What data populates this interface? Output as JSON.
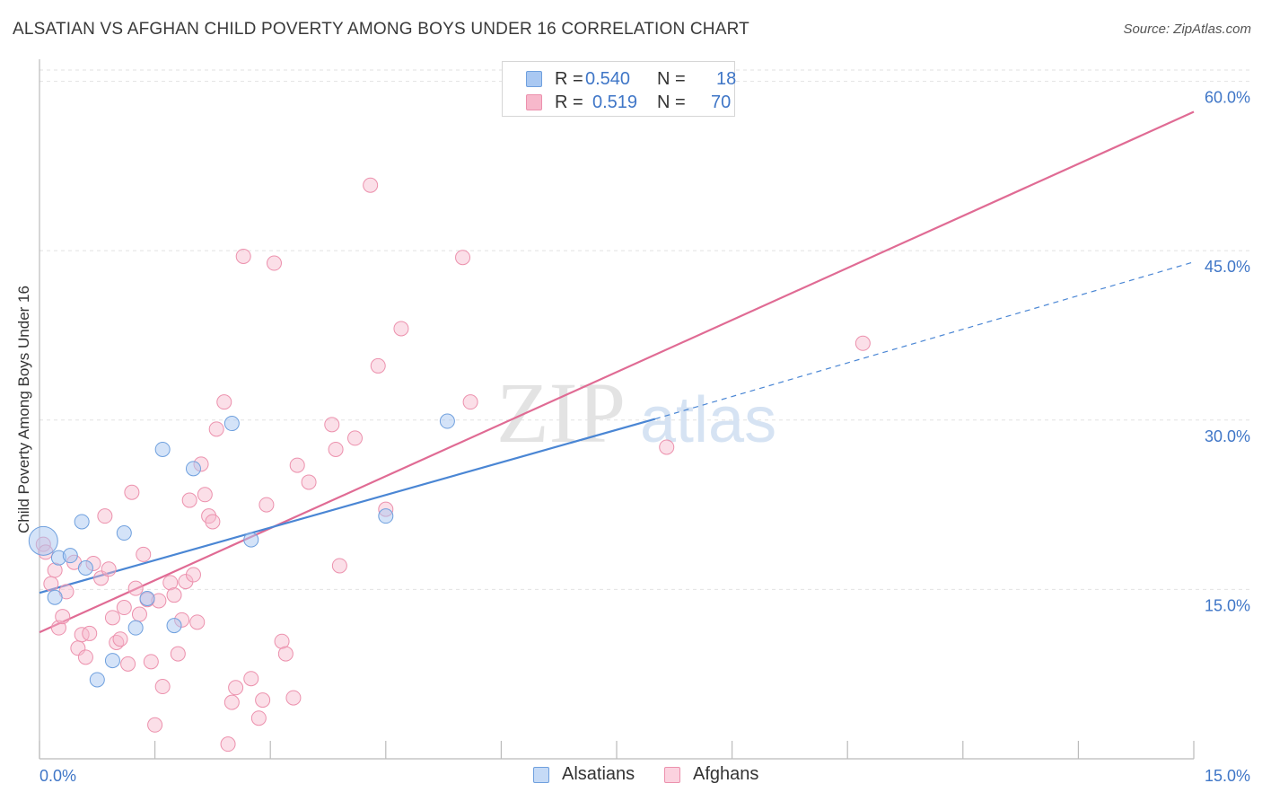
{
  "header": {
    "title": "ALSATIAN VS AFGHAN CHILD POVERTY AMONG BOYS UNDER 16 CORRELATION CHART",
    "source": "Source: ZipAtlas.com"
  },
  "watermark": {
    "zip": "ZIP",
    "atlas": "atlas"
  },
  "legend": {
    "rows": [
      {
        "r_label": "R =",
        "r_value": "0.540",
        "n_label": "N =",
        "n_value": "18",
        "color": "#a9c8f2"
      },
      {
        "r_label": "R =",
        "r_value": "0.519",
        "n_label": "N =",
        "n_value": "70",
        "color": "#f7b8cb"
      }
    ]
  },
  "bottom_legend": {
    "items": [
      {
        "label": "Alsatians",
        "color": "#a9c8f2"
      },
      {
        "label": "Afghans",
        "color": "#f7b8cb"
      }
    ]
  },
  "chart_data": {
    "type": "scatter",
    "title": "ALSATIAN VS AFGHAN CHILD POVERTY AMONG BOYS UNDER 16 CORRELATION CHART",
    "xlabel": "",
    "ylabel": "Child Poverty Among Boys Under 16",
    "xlim": [
      0,
      15
    ],
    "ylim": [
      0,
      61
    ],
    "x_tick_labels": [
      "0.0%",
      "15.0%"
    ],
    "y_ticks": [
      15,
      30,
      45,
      60
    ],
    "y_tick_labels": [
      "15.0%",
      "30.0%",
      "45.0%",
      "60.0%"
    ],
    "grid": true,
    "colors": {
      "alsatians": "#4a86d4",
      "afghans": "#e06b94",
      "tick_text": "#3f76c7"
    },
    "series": [
      {
        "name": "Alsatians",
        "color": "#a9c8f2",
        "stroke": "#6fa0de",
        "trend": {
          "x0": 0.0,
          "y0": 14.7,
          "x1": 8.0,
          "y1": 30.1,
          "x_dash_end": 15.0,
          "y_dash_end": 44.0
        },
        "points": [
          [
            0.05,
            19.3
          ],
          [
            0.2,
            14.3
          ],
          [
            0.55,
            21.0
          ],
          [
            0.25,
            17.8
          ],
          [
            0.4,
            18.0
          ],
          [
            0.6,
            16.9
          ],
          [
            0.75,
            7.0
          ],
          [
            0.95,
            8.7
          ],
          [
            1.1,
            20.0
          ],
          [
            1.25,
            11.6
          ],
          [
            1.4,
            14.2
          ],
          [
            1.6,
            27.4
          ],
          [
            1.75,
            11.8
          ],
          [
            2.0,
            25.7
          ],
          [
            2.5,
            29.7
          ],
          [
            2.75,
            19.4
          ],
          [
            4.5,
            21.5
          ],
          [
            5.3,
            29.9
          ]
        ]
      },
      {
        "name": "Afghans",
        "color": "#f7b8cb",
        "stroke": "#ec91ad",
        "trend": {
          "x0": 0.0,
          "y0": 11.2,
          "x1": 15.0,
          "y1": 57.3
        },
        "points": [
          [
            0.05,
            19.0
          ],
          [
            0.08,
            18.3
          ],
          [
            0.15,
            15.5
          ],
          [
            0.2,
            16.7
          ],
          [
            0.25,
            11.6
          ],
          [
            0.3,
            12.6
          ],
          [
            0.35,
            14.8
          ],
          [
            0.45,
            17.4
          ],
          [
            0.5,
            9.8
          ],
          [
            0.55,
            11.0
          ],
          [
            0.6,
            9.0
          ],
          [
            0.65,
            11.1
          ],
          [
            0.7,
            17.3
          ],
          [
            0.8,
            16.0
          ],
          [
            0.85,
            21.5
          ],
          [
            0.9,
            16.8
          ],
          [
            0.95,
            12.5
          ],
          [
            1.0,
            10.3
          ],
          [
            1.05,
            10.6
          ],
          [
            1.1,
            13.4
          ],
          [
            1.15,
            8.4
          ],
          [
            1.2,
            23.6
          ],
          [
            1.25,
            15.1
          ],
          [
            1.3,
            12.8
          ],
          [
            1.35,
            18.1
          ],
          [
            1.4,
            14.1
          ],
          [
            1.45,
            8.6
          ],
          [
            1.5,
            3.0
          ],
          [
            1.55,
            14.0
          ],
          [
            1.6,
            6.4
          ],
          [
            1.7,
            15.6
          ],
          [
            1.75,
            14.5
          ],
          [
            1.8,
            9.3
          ],
          [
            1.85,
            12.3
          ],
          [
            1.9,
            15.7
          ],
          [
            1.95,
            22.9
          ],
          [
            2.0,
            16.3
          ],
          [
            2.05,
            12.1
          ],
          [
            2.1,
            26.1
          ],
          [
            2.15,
            23.4
          ],
          [
            2.2,
            21.5
          ],
          [
            2.25,
            21.0
          ],
          [
            2.3,
            29.2
          ],
          [
            2.4,
            31.6
          ],
          [
            2.45,
            1.3
          ],
          [
            2.5,
            5.0
          ],
          [
            2.55,
            6.3
          ],
          [
            2.65,
            44.5
          ],
          [
            2.75,
            7.1
          ],
          [
            2.85,
            3.6
          ],
          [
            2.9,
            5.2
          ],
          [
            2.95,
            22.5
          ],
          [
            3.05,
            43.9
          ],
          [
            3.15,
            10.4
          ],
          [
            3.2,
            9.3
          ],
          [
            3.3,
            5.4
          ],
          [
            3.35,
            26.0
          ],
          [
            3.5,
            24.5
          ],
          [
            3.8,
            29.6
          ],
          [
            3.85,
            27.4
          ],
          [
            3.9,
            17.1
          ],
          [
            4.1,
            28.4
          ],
          [
            4.3,
            50.8
          ],
          [
            4.4,
            34.8
          ],
          [
            4.5,
            22.1
          ],
          [
            4.7,
            38.1
          ],
          [
            5.5,
            44.4
          ],
          [
            5.6,
            31.6
          ],
          [
            8.15,
            27.6
          ],
          [
            10.7,
            36.8
          ]
        ]
      }
    ]
  }
}
